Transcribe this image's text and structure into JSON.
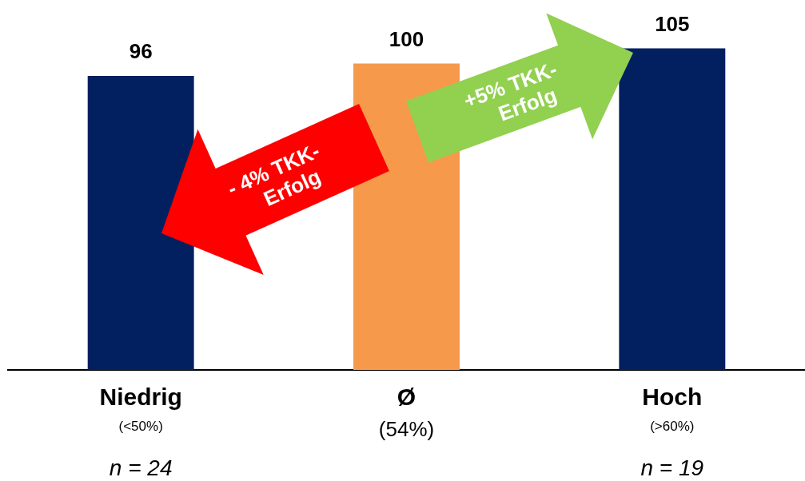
{
  "chart_data": {
    "type": "bar",
    "categories": [
      "Niedrig",
      "Ø",
      "Hoch"
    ],
    "values": [
      96,
      100,
      105
    ],
    "colors": [
      "#022060",
      "#f6994a",
      "#022060"
    ],
    "data_labels": true,
    "grid": false,
    "legend": false,
    "annotations": [
      "(<50%)",
      "(54%)",
      "(>60%)",
      "n = 24",
      "n = 19",
      "- 4% TKK-Erfolg",
      "+5% TKK-Erfolg"
    ]
  }
}
